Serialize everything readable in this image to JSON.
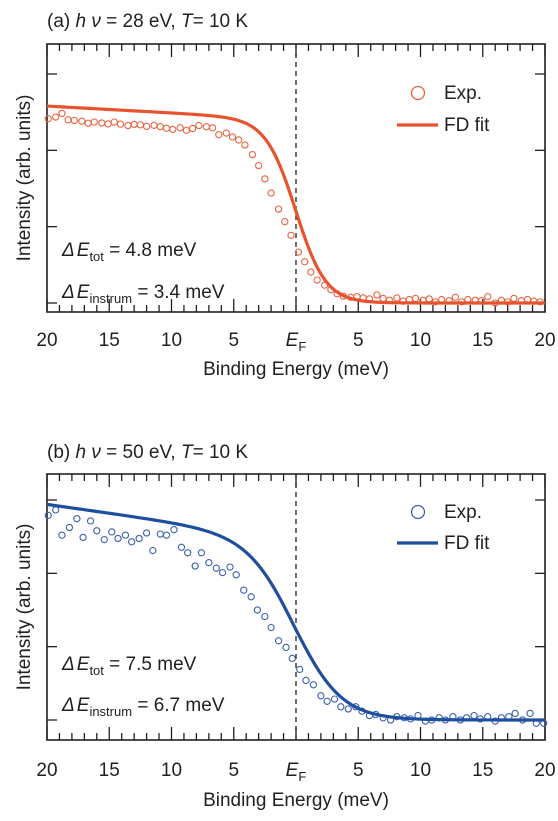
{
  "chart_data": [
    {
      "type": "scatter",
      "panel_label": "(a)",
      "title_parts": {
        "hnu": "h ν",
        "photon_energy": "= 28 eV,",
        "T_sym": "T",
        "temperature": "= 10 K"
      },
      "xlabel": "Binding Energy (meV)",
      "ylabel": "Intensity (arb. units)",
      "xlim": [
        -20,
        20
      ],
      "ylim": [
        0,
        1
      ],
      "x_tick_labels": [
        "20",
        "15",
        "10",
        "5",
        "E_F",
        "5",
        "10",
        "15",
        "20"
      ],
      "x_tick_values": [
        -20,
        -15,
        -10,
        -5,
        0,
        5,
        10,
        15,
        20
      ],
      "fermi_sub": "F",
      "legend": {
        "exp": "Exp.",
        "fit": "FD fit",
        "placement": "top-right"
      },
      "annotations": {
        "tot_sub": "tot",
        "tot_value": "= 4.8 meV",
        "instrum_sub": "instrum",
        "instrum_value": "= 3.4 meV"
      },
      "fit": {
        "model": "fermi-dirac",
        "width_meV": 4.8,
        "high": 0.8,
        "low": 0.0,
        "slope": 0.003
      },
      "colors": {
        "marker": "#e9623f",
        "line": "#e8522e"
      },
      "series": [
        {
          "name": "Exp.",
          "x": [
            -19.9,
            -19.3,
            -18.8,
            -18.3,
            -17.8,
            -17.2,
            -16.7,
            -16.2,
            -15.6,
            -15.1,
            -14.6,
            -14.1,
            -13.5,
            -13.0,
            -12.5,
            -12.0,
            -11.4,
            -10.9,
            -10.4,
            -9.9,
            -9.3,
            -8.8,
            -8.3,
            -7.8,
            -7.2,
            -6.7,
            -6.2,
            -5.6,
            -5.1,
            -4.6,
            -4.1,
            -3.5,
            -3.0,
            -2.5,
            -2.0,
            -1.4,
            -0.9,
            -0.4,
            0.2,
            0.7,
            1.2,
            1.7,
            2.3,
            2.8,
            3.3,
            3.8,
            4.4,
            4.9,
            5.4,
            5.9,
            6.5,
            7.0,
            7.5,
            8.1,
            8.6,
            9.1,
            9.6,
            10.2,
            10.7,
            11.2,
            11.7,
            12.3,
            12.8,
            13.3,
            13.8,
            14.4,
            14.9,
            15.4,
            16.0,
            16.5,
            17.0,
            17.5,
            18.1,
            18.6,
            19.1,
            19.6
          ],
          "y": [
            0.805,
            0.812,
            0.828,
            0.8,
            0.797,
            0.794,
            0.785,
            0.79,
            0.786,
            0.782,
            0.79,
            0.781,
            0.775,
            0.78,
            0.778,
            0.771,
            0.776,
            0.77,
            0.763,
            0.758,
            0.765,
            0.754,
            0.762,
            0.775,
            0.77,
            0.765,
            0.735,
            0.742,
            0.725,
            0.712,
            0.69,
            0.648,
            0.6,
            0.542,
            0.48,
            0.41,
            0.355,
            0.295,
            0.222,
            0.18,
            0.135,
            0.1,
            0.078,
            0.058,
            0.04,
            0.03,
            0.025,
            0.028,
            0.022,
            0.018,
            0.035,
            0.02,
            0.012,
            0.022,
            0.008,
            0.015,
            0.02,
            0.012,
            0.018,
            0.005,
            0.015,
            0.01,
            0.025,
            0.005,
            0.015,
            0.012,
            0.01,
            0.028,
            0.0,
            0.012,
            0.005,
            0.02,
            0.01,
            0.015,
            0.008,
            0.005
          ]
        }
      ]
    },
    {
      "type": "scatter",
      "panel_label": "(b)",
      "title_parts": {
        "hnu": "h ν",
        "photon_energy": "= 50 eV,",
        "T_sym": "T",
        "temperature": "= 10 K"
      },
      "xlabel": "Binding Energy (meV)",
      "ylabel": "Intensity (arb. units)",
      "xlim": [
        -20,
        20
      ],
      "ylim": [
        0,
        1
      ],
      "x_tick_labels": [
        "20",
        "15",
        "10",
        "5",
        "E_F",
        "5",
        "10",
        "15",
        "20"
      ],
      "x_tick_values": [
        -20,
        -15,
        -10,
        -5,
        0,
        5,
        10,
        15,
        20
      ],
      "fermi_sub": "F",
      "legend": {
        "exp": "Exp.",
        "fit": "FD fit",
        "placement": "top-right"
      },
      "annotations": {
        "tot_sub": "tot",
        "tot_value": "= 7.5 meV",
        "instrum_sub": "instrum",
        "instrum_value": "= 6.7 meV"
      },
      "fit": {
        "model": "fermi-dirac",
        "width_meV": 7.5,
        "high": 0.82,
        "low": 0.0,
        "slope": 0.008
      },
      "colors": {
        "marker": "#3a5fae",
        "line": "#1f4e9e"
      },
      "series": [
        {
          "name": "Exp.",
          "x": [
            -19.9,
            -19.3,
            -18.8,
            -18.2,
            -17.6,
            -17.1,
            -16.5,
            -16.0,
            -15.4,
            -14.8,
            -14.3,
            -13.7,
            -13.2,
            -12.6,
            -12.0,
            -11.5,
            -10.9,
            -10.4,
            -9.8,
            -9.2,
            -8.7,
            -8.1,
            -7.6,
            -7.0,
            -6.4,
            -5.9,
            -5.3,
            -4.8,
            -4.2,
            -3.6,
            -3.1,
            -2.5,
            -2.0,
            -1.4,
            -0.8,
            -0.3,
            0.3,
            0.8,
            1.4,
            2.0,
            2.5,
            3.1,
            3.6,
            4.2,
            4.8,
            5.3,
            5.9,
            6.4,
            7.0,
            7.6,
            8.1,
            8.7,
            9.2,
            9.8,
            10.4,
            10.9,
            11.5,
            12.0,
            12.6,
            13.2,
            13.7,
            14.3,
            14.8,
            15.4,
            16.0,
            16.5,
            17.1,
            17.6,
            18.2,
            18.8,
            19.3,
            19.9
          ],
          "y": [
            0.93,
            0.955,
            0.84,
            0.875,
            0.915,
            0.83,
            0.905,
            0.86,
            0.82,
            0.855,
            0.825,
            0.84,
            0.81,
            0.825,
            0.85,
            0.77,
            0.845,
            0.84,
            0.865,
            0.785,
            0.76,
            0.7,
            0.76,
            0.715,
            0.69,
            0.67,
            0.695,
            0.66,
            0.59,
            0.56,
            0.5,
            0.47,
            0.42,
            0.36,
            0.33,
            0.28,
            0.23,
            0.18,
            0.16,
            0.11,
            0.085,
            0.095,
            0.06,
            0.05,
            0.06,
            0.04,
            0.02,
            0.025,
            0.01,
            0.0,
            0.015,
            0.01,
            0.005,
            0.02,
            -0.005,
            0.0,
            0.01,
            0.0,
            0.015,
            0.0,
            0.01,
            0.02,
            0.005,
            0.015,
            -0.005,
            0.01,
            0.015,
            0.03,
            0.0,
            0.03,
            -0.015,
            -0.015
          ]
        }
      ]
    }
  ]
}
